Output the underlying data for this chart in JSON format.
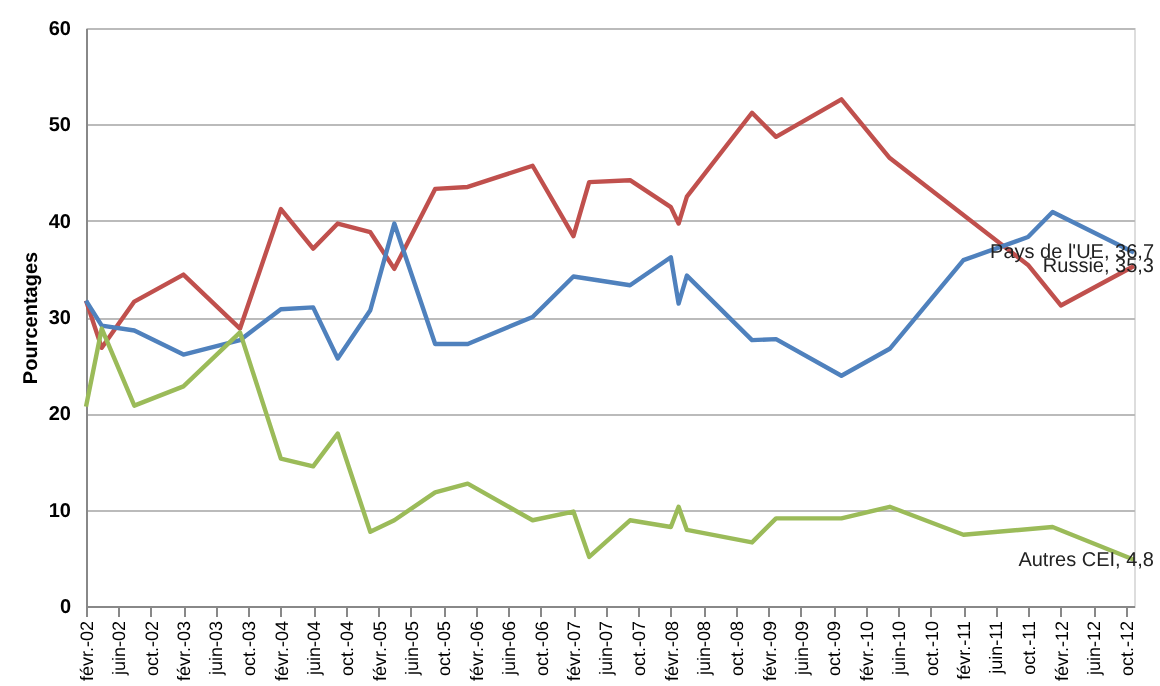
{
  "chart_data": {
    "type": "line",
    "ylabel": "Pourcentages",
    "x": [
      "2002-02",
      "2002-04",
      "2002-08",
      "2003-02",
      "2003-09",
      "2004-02",
      "2004-06",
      "2004-09",
      "2005-01",
      "2005-04",
      "2005-09",
      "2006-01",
      "2006-09",
      "2007-02",
      "2007-04",
      "2007-09",
      "2008-02",
      "2008-03",
      "2008-04",
      "2008-12",
      "2009-03",
      "2009-11",
      "2010-05",
      "2011-02",
      "2011-10",
      "2012-01",
      "2012-02",
      "2012-11"
    ],
    "series": [
      {
        "color": "#c0504d",
        "values": [
          31.7,
          26.8,
          31.6,
          34.4,
          28.8,
          41.2,
          37.1,
          39.7,
          38.8,
          35.0,
          43.3,
          43.5,
          45.7,
          38.4,
          44.0,
          44.2,
          41.4,
          39.7,
          42.5,
          51.2,
          48.7,
          52.6,
          46.5,
          null,
          35.4,
          null,
          31.2,
          35.3
        ]
      },
      {
        "color": "#4f81bd",
        "values": [
          31.7,
          29.1,
          28.6,
          26.1,
          27.6,
          30.8,
          31.0,
          25.7,
          30.7,
          39.7,
          27.2,
          27.2,
          30.0,
          34.2,
          null,
          33.3,
          36.2,
          31.4,
          34.3,
          27.6,
          27.7,
          23.9,
          26.7,
          35.9,
          38.3,
          40.9,
          null,
          36.7
        ]
      },
      {
        "color": "#9bbb59",
        "values": [
          20.7,
          28.8,
          20.8,
          22.8,
          28.4,
          15.3,
          14.5,
          17.9,
          7.7,
          8.9,
          11.8,
          12.7,
          8.9,
          9.8,
          5.1,
          8.9,
          8.2,
          10.3,
          7.9,
          6.6,
          9.1,
          9.1,
          10.3,
          7.4,
          null,
          8.2,
          null,
          4.8
        ]
      }
    ],
    "annotations": [
      {
        "text": "Pays de l'UE, 36,7",
        "x": "2012-11",
        "y": 36.7
      },
      {
        "text": "Russie, 35,3",
        "x": "2012-11",
        "y": 35.3
      },
      {
        "text": "Autres CEI, 4,8",
        "x": "2012-11",
        "y": 4.8
      }
    ],
    "xlim": [
      "2002-02",
      "2012-11"
    ],
    "xticks": [
      {
        "value": "2002-02",
        "label": "févr.-02"
      },
      {
        "value": "2002-06",
        "label": "juin-02"
      },
      {
        "value": "2002-10",
        "label": "oct.-02"
      },
      {
        "value": "2003-02",
        "label": "févr.-03"
      },
      {
        "value": "2003-06",
        "label": "juin-03"
      },
      {
        "value": "2003-10",
        "label": "oct.-03"
      },
      {
        "value": "2004-02",
        "label": "févr.-04"
      },
      {
        "value": "2004-06",
        "label": "juin-04"
      },
      {
        "value": "2004-10",
        "label": "oct.-04"
      },
      {
        "value": "2005-02",
        "label": "févr.-05"
      },
      {
        "value": "2005-06",
        "label": "juin-05"
      },
      {
        "value": "2005-10",
        "label": "oct.-05"
      },
      {
        "value": "2006-02",
        "label": "févr.-06"
      },
      {
        "value": "2006-06",
        "label": "juin-06"
      },
      {
        "value": "2006-10",
        "label": "oct.-06"
      },
      {
        "value": "2007-02",
        "label": "févr.-07"
      },
      {
        "value": "2007-06",
        "label": "juin-07"
      },
      {
        "value": "2007-10",
        "label": "oct.-07"
      },
      {
        "value": "2008-02",
        "label": "févr.-08"
      },
      {
        "value": "2008-06",
        "label": "juin-08"
      },
      {
        "value": "2008-10",
        "label": "oct.-08"
      },
      {
        "value": "2009-02",
        "label": "févr.-09"
      },
      {
        "value": "2009-06",
        "label": "juin-09"
      },
      {
        "value": "2009-10",
        "label": "oct.-09"
      },
      {
        "value": "2010-02",
        "label": "févr.-10"
      },
      {
        "value": "2010-06",
        "label": "juin-10"
      },
      {
        "value": "2010-10",
        "label": "oct.-10"
      },
      {
        "value": "2011-02",
        "label": "févr.-11"
      },
      {
        "value": "2011-06",
        "label": "juin-11"
      },
      {
        "value": "2011-10",
        "label": "oct.-11"
      },
      {
        "value": "2012-02",
        "label": "févr.-12"
      },
      {
        "value": "2012-06",
        "label": "juin-12"
      },
      {
        "value": "2012-10",
        "label": "oct.-12"
      }
    ],
    "ylim": [
      0,
      60
    ],
    "yticks": [
      0,
      10,
      20,
      30,
      40,
      50,
      60
    ],
    "grid": "y",
    "marker": "none",
    "line_style": "solid"
  }
}
